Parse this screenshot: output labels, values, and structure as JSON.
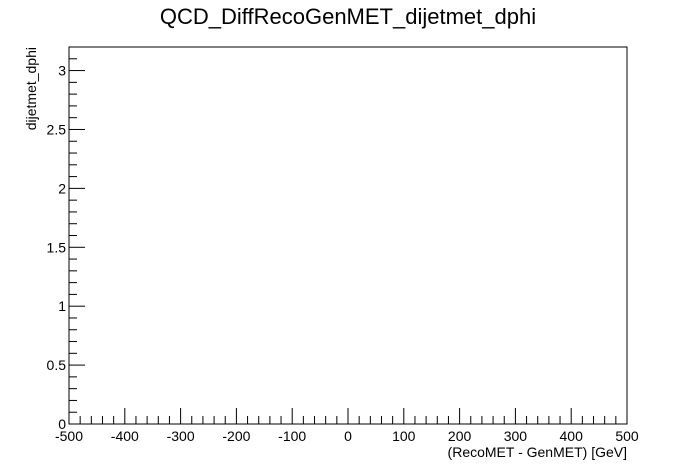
{
  "chart_data": {
    "type": "scatter",
    "title": "QCD_DiffRecoGenMET_dijetmet_dphi",
    "xlabel": "(RecoMET - GenMET)  [GeV]",
    "ylabel": "dijetmet_dphi",
    "xlim": [
      -500,
      500
    ],
    "ylim": [
      0,
      3.2
    ],
    "x_ticks": [
      -500,
      -400,
      -300,
      -200,
      -100,
      0,
      100,
      200,
      300,
      400,
      500
    ],
    "x_tick_labels": [
      "-500",
      "-400",
      "-300",
      "-200",
      "-100",
      "0",
      "100",
      "200",
      "300",
      "400",
      "500"
    ],
    "y_ticks": [
      0,
      0.5,
      1,
      1.5,
      2,
      2.5,
      3
    ],
    "y_tick_labels": [
      "0",
      "0.5",
      "1",
      "1.5",
      "2",
      "2.5",
      "3"
    ],
    "series": [],
    "grid": false,
    "frame_color": "#000000"
  }
}
